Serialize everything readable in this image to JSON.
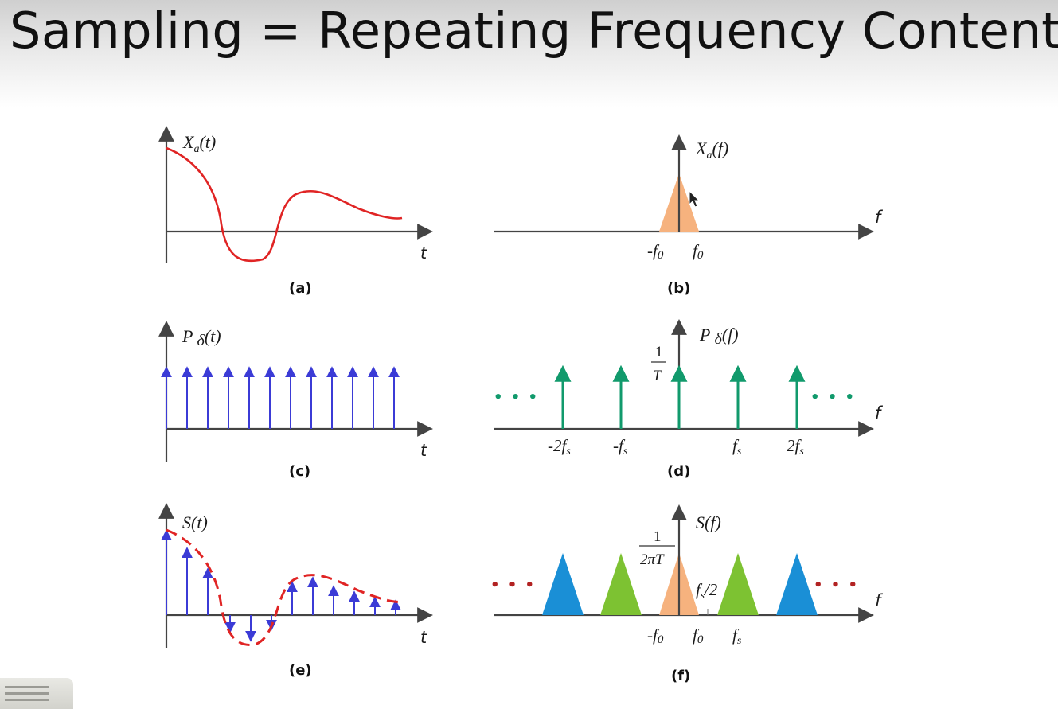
{
  "title": "Sampling = Repeating Frequency Contents",
  "panels": {
    "a": {
      "label": "Xa(t)",
      "label_main": "X",
      "label_sub": "a",
      "label_arg": "(t)",
      "axis": "t",
      "caption": "(a)"
    },
    "b": {
      "label_main": "X",
      "label_sub": "a",
      "label_arg": "(f)",
      "axis": "f",
      "caption": "(b)",
      "ticks": [
        "-f0",
        "f0"
      ],
      "tick_neg_main": "-f",
      "tick_pos_main": "f",
      "tick_sub": "0"
    },
    "c": {
      "label_main": "P ",
      "label_delta": "δ",
      "label_arg": "(t)",
      "axis": "t",
      "caption": "(c)",
      "impulse_count": 12
    },
    "d": {
      "label_main": "P ",
      "label_delta": "δ",
      "label_arg": "(f)",
      "axis": "f",
      "caption": "(d)",
      "height_num": "1",
      "height_den": "T",
      "ticks": [
        "-2fs",
        "-fs",
        "fs",
        "2fs"
      ],
      "t_m2_main": "-2f",
      "t_m1_main": "-f",
      "t_p1_main": "f",
      "t_p2_main": "2f",
      "t_sub": "s",
      "dots_left": "• • •",
      "dots_right": "• • •"
    },
    "e": {
      "label": "S(t)",
      "axis": "t",
      "caption": "(e)"
    },
    "f": {
      "label": "S(f)",
      "axis": "f",
      "caption": "(f)",
      "height_num": "1",
      "height_den": "2πT",
      "half_main": "f",
      "half_sub": "s",
      "half_rest": "/2",
      "tick_neg_main": "-f",
      "tick_pos_main": "f",
      "tick_sub": "0",
      "tick_fs_main": "f",
      "tick_fs_sub": "s",
      "dots_left": "• • •",
      "dots_right": "• • •"
    }
  },
  "colors": {
    "signal_red": "#e02424",
    "impulse_blue": "#3b3bd6",
    "impulse_green": "#119a6c",
    "spectrum_orange": "#f6b27e",
    "replica_green": "#7dc232",
    "replica_blue": "#1a8fd6",
    "dots_red": "#b22222",
    "axis": "#333333"
  }
}
